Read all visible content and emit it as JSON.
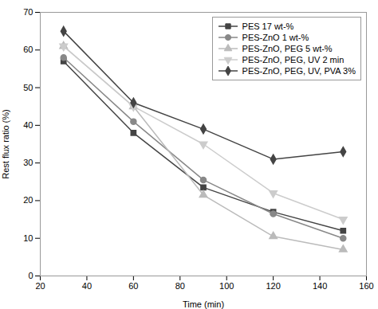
{
  "chart_data": {
    "type": "line",
    "xlabel": "Time (min)",
    "ylabel": "Rest flux ratio (%)",
    "x": [
      30,
      60,
      90,
      120,
      150
    ],
    "series": [
      {
        "name": "PES 17 wt-%",
        "color": "#444444",
        "marker": "square",
        "values": [
          57,
          38,
          23.5,
          17,
          12
        ]
      },
      {
        "name": "PES-ZnO 1 wt-%",
        "color": "#888888",
        "marker": "circle",
        "values": [
          58,
          41,
          25.5,
          16.5,
          10
        ]
      },
      {
        "name": "PES-ZnO, PEG 5 wt-%",
        "color": "#bbbbbb",
        "marker": "triangle-up",
        "values": [
          61,
          45,
          21.5,
          10.5,
          7
        ]
      },
      {
        "name": "PES-ZnO, PEG, UV 2 min",
        "color": "#cccccc",
        "marker": "triangle-down",
        "values": [
          61,
          45,
          35,
          22,
          15
        ]
      },
      {
        "name": "PES-ZnO, PEG, UV, PVA 3%",
        "color": "#444444",
        "marker": "diamond",
        "values": [
          65,
          46,
          39,
          31,
          33
        ]
      }
    ],
    "xlim": [
      20,
      160
    ],
    "ylim": [
      0,
      70
    ],
    "xticks": [
      20,
      40,
      60,
      80,
      100,
      120,
      140,
      160
    ],
    "yticks": [
      0,
      10,
      20,
      30,
      40,
      50,
      60,
      70
    ],
    "legend": "upper right"
  }
}
